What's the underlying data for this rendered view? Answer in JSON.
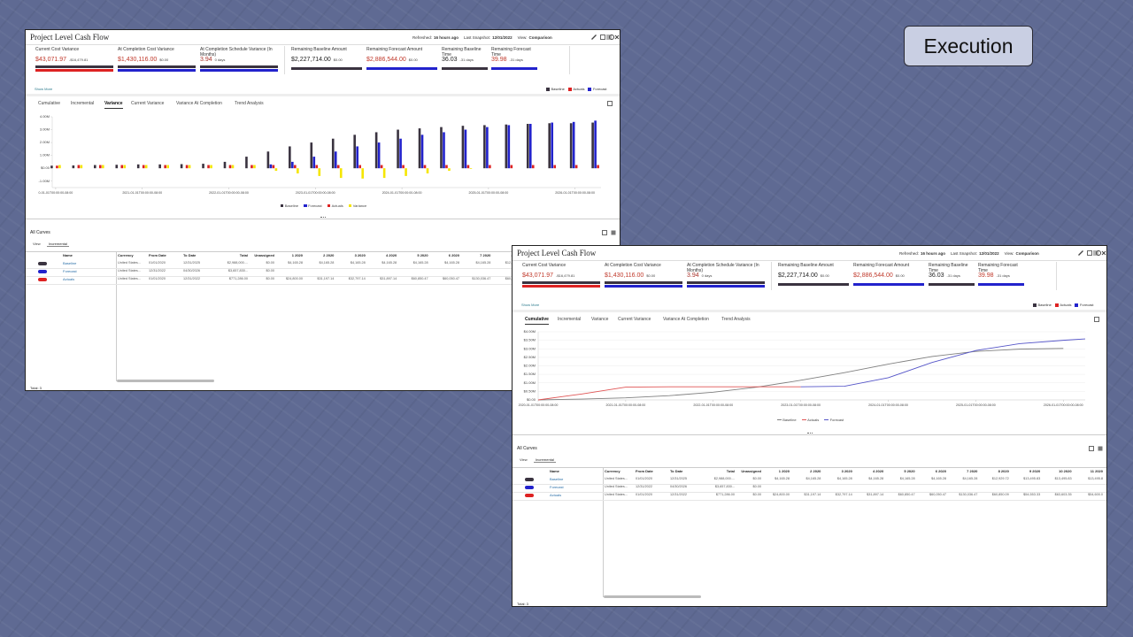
{
  "slide": {
    "label": "Execution"
  },
  "dashboard": {
    "title": "Project Level Cash Flow",
    "refreshed_label": "Refreshed:",
    "refreshed": "16 hours ago",
    "snapshot_label": "Last Snapshot:",
    "snapshot": "12/01/2022",
    "view_label": "View:",
    "view": "Comparison",
    "metrics": [
      {
        "label": "Current Cost Variance",
        "value": "$43,071.97",
        "delta": "-$16,479.81",
        "value_color": "#c0392b",
        "bar_colors": [
          "#3a3340",
          "#dd2222"
        ]
      },
      {
        "label": "At Completion Cost Variance",
        "value": "$1,430,116.00",
        "delta": "$0.00",
        "value_color": "#c0392b",
        "bar_colors": [
          "#3a3340",
          "#2222cc"
        ]
      },
      {
        "label": "At Completion Schedule Variance (In Months)",
        "value": "3.94",
        "delta": "0 days",
        "value_color": "#a8322a",
        "bar_colors": [
          "#3a3340",
          "#2222cc"
        ]
      },
      {
        "label": "Remaining Baseline Amount",
        "value": "$2,227,714.00",
        "delta": "$0.00",
        "value_color": "#222222",
        "bar_colors": [
          "#3a3340"
        ]
      },
      {
        "label": "Remaining Forecast Amount",
        "value": "$2,886,544.00",
        "delta": "$0.00",
        "value_color": "#c0392b",
        "bar_colors": [
          "#2222cc"
        ]
      },
      {
        "label": "Remaining Baseline Time",
        "value": "36.03",
        "delta": "-31 days",
        "value_color": "#222222",
        "bar_colors": [
          "#3a3340"
        ]
      },
      {
        "label": "Remaining Forecast Time",
        "value": "39.98",
        "delta": "-31 days",
        "value_color": "#c0392b",
        "bar_colors": [
          "#2222cc"
        ]
      }
    ],
    "show_more": "Show More",
    "summary_legend": [
      {
        "name": "Baseline",
        "color": "#3a3340"
      },
      {
        "name": "Actuals",
        "color": "#dd2222"
      },
      {
        "name": "Forecast",
        "color": "#2222cc"
      }
    ],
    "tabs": [
      "Cumulative",
      "Incremental",
      "Variance",
      "Current Variance",
      "Variance At Completion",
      "Trend Analysis"
    ],
    "curves": {
      "title": "All Curves",
      "view_label": "View",
      "view": "Incremental",
      "columns": [
        "Name",
        "Currency",
        "From Date",
        "To Date",
        "Total",
        "Unassigned",
        "1 2020",
        "2 2020",
        "3 2020",
        "4 2020",
        "5 2020",
        "6 2020",
        "7 2020",
        "8 2020",
        "9 2020",
        "10 2020",
        "11 2020"
      ],
      "rows": [
        {
          "name": "Baseline",
          "color": "#3a3340",
          "cells": [
            "United States...",
            "01/01/2020",
            "12/31/2025",
            "$2,988,000....",
            "$0.00",
            "$4,165.28",
            "$4,165.28",
            "$4,165.28",
            "$4,165.28",
            "$4,165.28",
            "$4,165.28",
            "$4,165.28",
            "$12,929.72",
            "$13,495.83",
            "$13,495.83",
            "$13,495.8"
          ]
        },
        {
          "name": "Forecast",
          "color": "#2222cc",
          "cells": [
            "United States...",
            "12/31/2022",
            "04/30/2026",
            "$3,657,830...",
            "$0.00",
            null,
            null,
            null,
            null,
            null,
            null,
            null,
            null,
            null,
            null,
            null
          ]
        },
        {
          "name": "Actuals",
          "color": "#dd2222",
          "cells": [
            "United States...",
            "01/01/2020",
            "12/31/2022",
            "$771,286.00",
            "$0.00",
            "$24,800.00",
            "$31,197.14",
            "$32,797.14",
            "$31,897.14",
            "$60,850.47",
            "$60,050.47",
            "$130,036.47",
            "$60,850.09",
            "$54,553.33",
            "$63,603.35",
            "$54,600.0"
          ]
        }
      ],
      "total": "Total: 3"
    }
  },
  "panels": [
    {
      "active_tab": 2,
      "chart_data": {
        "type": "bar",
        "grid": false,
        "xlim": [
          2019.96,
          2026.3
        ],
        "xticks": [
          {
            "value": 2020,
            "label": "0-01-01T00:00:00-08:00"
          },
          {
            "value": 2021,
            "label": "2021-01-01T00:00:00-08:00"
          },
          {
            "value": 2022,
            "label": "2022-01-01T00:00:00-08:00"
          },
          {
            "value": 2023,
            "label": "2023-01-01T00:00:00-08:00"
          },
          {
            "value": 2024,
            "label": "2024-01-01T00:00:00-08:00"
          },
          {
            "value": 2025,
            "label": "2025-01-01T00:00:00-08:00"
          },
          {
            "value": 2026,
            "label": "2026-01-01T00:00:00-08:00"
          }
        ],
        "ylim": [
          -1500000,
          4000000
        ],
        "yticks": [
          {
            "value": 4000000,
            "label": "4.00M"
          },
          {
            "value": 3000000,
            "label": "3.00M"
          },
          {
            "value": 2000000,
            "label": "2.00M"
          },
          {
            "value": 1000000,
            "label": "1.00M"
          },
          {
            "value": 0,
            "label": "$0.00"
          },
          {
            "value": -1000000,
            "label": "-1.00M"
          }
        ],
        "x": [
          2020,
          2020.25,
          2020.5,
          2020.75,
          2021,
          2021.25,
          2021.5,
          2021.75,
          2022,
          2022.25,
          2022.5,
          2022.75,
          2023,
          2023.25,
          2023.5,
          2023.75,
          2024,
          2024.25,
          2024.5,
          2024.75,
          2025,
          2025.25,
          2025.5,
          2025.75,
          2026,
          2026.25
        ],
        "series": [
          {
            "name": "Baseline",
            "color": "#3a3340",
            "values": [
              200000,
              220000,
              250000,
              270000,
              300000,
              300000,
              320000,
              350000,
              500000,
              900000,
              1300000,
              1700000,
              2000000,
              2300000,
              2600000,
              2800000,
              3000000,
              3100000,
              3200000,
              3300000,
              3350000,
              3400000,
              3450000,
              3500000,
              3500000,
              3550000
            ]
          },
          {
            "name": "Forecast",
            "color": "#2222cc",
            "values": [
              null,
              null,
              null,
              null,
              null,
              null,
              null,
              null,
              null,
              null,
              300000,
              500000,
              900000,
              1300000,
              1700000,
              2000000,
              2300000,
              2600000,
              2800000,
              3000000,
              3200000,
              3350000,
              3450000,
              3550000,
              3600000,
              3700000
            ]
          },
          {
            "name": "Actuals",
            "color": "#dd2222",
            "values": [
              200000,
              250000,
              250000,
              250000,
              250000,
              250000,
              250000,
              250000,
              250000,
              250000,
              250000,
              250000,
              250000,
              250000,
              250000,
              250000,
              250000,
              250000,
              250000,
              250000,
              250000,
              250000,
              250000,
              250000,
              250000,
              250000
            ]
          },
          {
            "name": "Variance",
            "color": "#f5e600",
            "values": [
              250000,
              250000,
              250000,
              250000,
              250000,
              250000,
              250000,
              250000,
              250000,
              250000,
              -200000,
              -400000,
              -600000,
              -750000,
              -800000,
              -750000,
              -600000,
              -400000,
              -200000,
              -50000,
              0,
              0,
              0,
              0,
              0,
              0
            ]
          }
        ]
      }
    },
    {
      "active_tab": 0,
      "chart_data": {
        "type": "line",
        "grid": true,
        "xlim": [
          2020,
          2026.25
        ],
        "xticks": [
          {
            "value": 2020,
            "label": "2020-01-01T00:00:00-08:00"
          },
          {
            "value": 2021,
            "label": "2021-01-01T00:00:00-08:00"
          },
          {
            "value": 2022,
            "label": "2022-01-01T00:00:00-08:00"
          },
          {
            "value": 2023,
            "label": "2023-01-01T00:00:00-08:00"
          },
          {
            "value": 2024,
            "label": "2024-01-01T00:00:00-08:00"
          },
          {
            "value": 2025,
            "label": "2025-01-01T00:00:00-08:00"
          },
          {
            "value": 2026,
            "label": "2026-01-01T00:00:00-08:00"
          }
        ],
        "ylim": [
          0,
          4000000
        ],
        "yticks": [
          {
            "value": 0,
            "label": "$0.00"
          },
          {
            "value": 500000,
            "label": "$0.50M"
          },
          {
            "value": 1000000,
            "label": "$1.00M"
          },
          {
            "value": 1500000,
            "label": "$1.50M"
          },
          {
            "value": 2000000,
            "label": "$2.00M"
          },
          {
            "value": 2500000,
            "label": "$2.50M"
          },
          {
            "value": 3000000,
            "label": "$3.00M"
          },
          {
            "value": 3500000,
            "label": "$3.50M"
          },
          {
            "value": 4000000,
            "label": "$4.00M"
          }
        ],
        "series": [
          {
            "name": "Baseline",
            "color": "#808080",
            "x": [
              2020,
              2020.5,
              2021,
              2021.5,
              2022,
              2022.5,
              2023,
              2023.5,
              2024,
              2024.5,
              2025,
              2025.5,
              2026
            ],
            "values": [
              0,
              50000,
              120000,
              250000,
              450000,
              750000,
              1150000,
              1600000,
              2100000,
              2550000,
              2850000,
              2980000,
              3020000
            ]
          },
          {
            "name": "Actuals",
            "color": "#e05555",
            "x": [
              2020,
              2020.5,
              2021,
              2021.5,
              2022,
              2022.5,
              2023
            ],
            "values": [
              0,
              350000,
              750000,
              770000,
              770000,
              770000,
              770000
            ]
          },
          {
            "name": "Forecast",
            "color": "#5555c8",
            "x": [
              2023,
              2023.5,
              2024,
              2024.5,
              2025,
              2025.5,
              2026,
              2026.25
            ],
            "values": [
              770000,
              800000,
              1300000,
              2200000,
              2900000,
              3300000,
              3500000,
              3580000
            ]
          }
        ]
      }
    }
  ]
}
